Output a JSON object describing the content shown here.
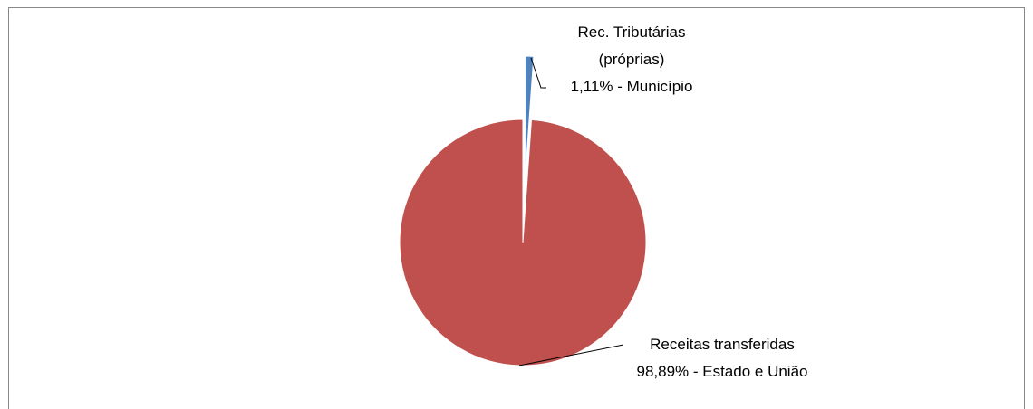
{
  "chart_data": {
    "type": "pie",
    "categories": [
      "Rec. Tributárias (próprias)",
      "Receitas transferidas"
    ],
    "values": [
      1.11,
      98.89
    ],
    "value_labels": [
      "1,11% - Município",
      "98,89% - Estado e União"
    ],
    "colors": [
      "#4f81bd",
      "#c0504d"
    ],
    "exploded": [
      true,
      false
    ]
  }
}
